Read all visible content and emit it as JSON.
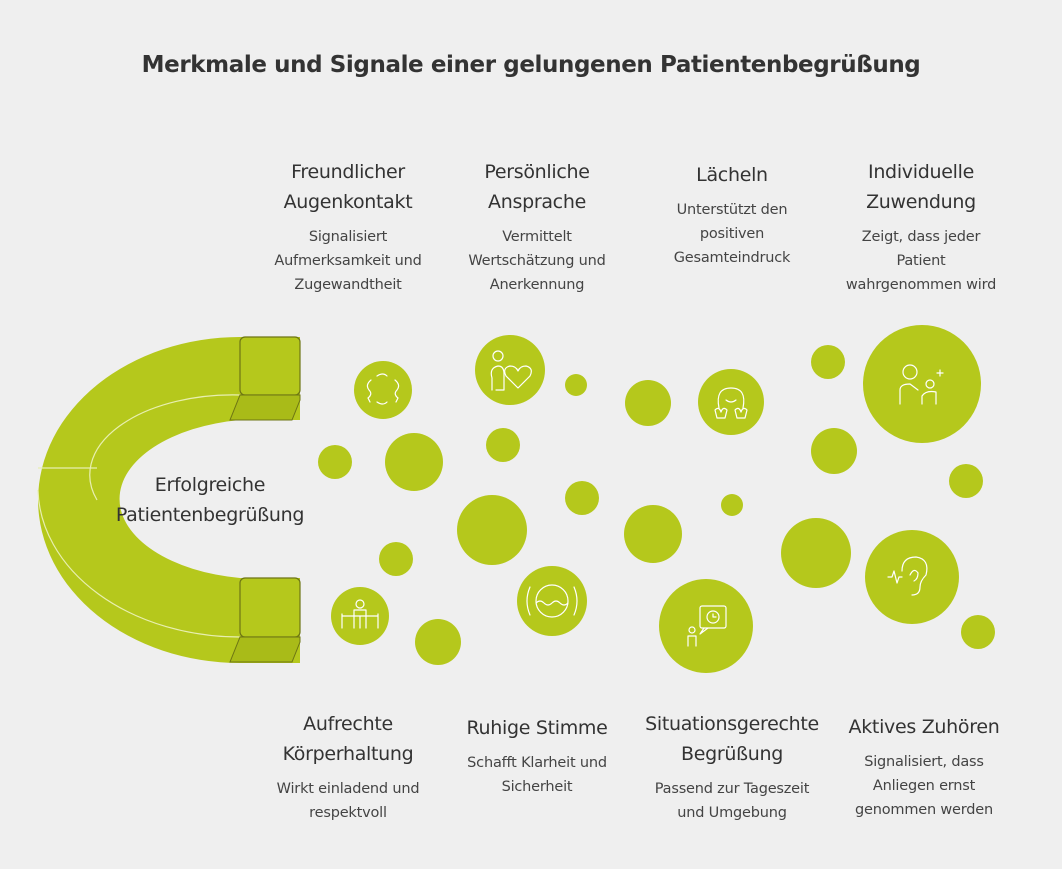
{
  "title": "Merkmale und Signale einer gelungenen Patientenbegrüßung",
  "center": "Erfolgreiche\nPatientenbegrüßung",
  "colors": {
    "accent": "#b5c81c",
    "background": "#efefef",
    "text": "#333333"
  },
  "items": [
    {
      "title": "Freundlicher\nAugenkontakt",
      "desc": "Signalisiert\nAufmerksamkeit und\nZugewandtheit",
      "icon": "faces-exchange-icon"
    },
    {
      "title": "Persönliche\nAnsprache",
      "desc": "Vermittelt\nWertschätzung und\nAnerkennung",
      "icon": "person-heart-icon"
    },
    {
      "title": "Lächeln",
      "desc": "Unterstützt den\npositiven\nGesamteindruck",
      "icon": "smiling-face-icon"
    },
    {
      "title": "Individuelle\nZuwendung",
      "desc": "Zeigt, dass jeder\nPatient\nwahrgenommen wird",
      "icon": "caregiver-patient-icon"
    },
    {
      "title": "Aufrechte\nKörperhaltung",
      "desc": "Wirkt einladend und\nrespektvoll",
      "icon": "upright-person-icon"
    },
    {
      "title": "Ruhige Stimme",
      "desc": "Schafft Klarheit und\nSicherheit",
      "icon": "calm-voice-icon"
    },
    {
      "title": "Situationsgerechte\nBegrüßung",
      "desc": "Passend zur Tageszeit\nund Umgebung",
      "icon": "person-clock-icon"
    },
    {
      "title": "Aktives Zuhören",
      "desc": "Signalisiert, dass\nAnliegen ernst\ngenommen werden",
      "icon": "ear-listening-icon"
    }
  ]
}
